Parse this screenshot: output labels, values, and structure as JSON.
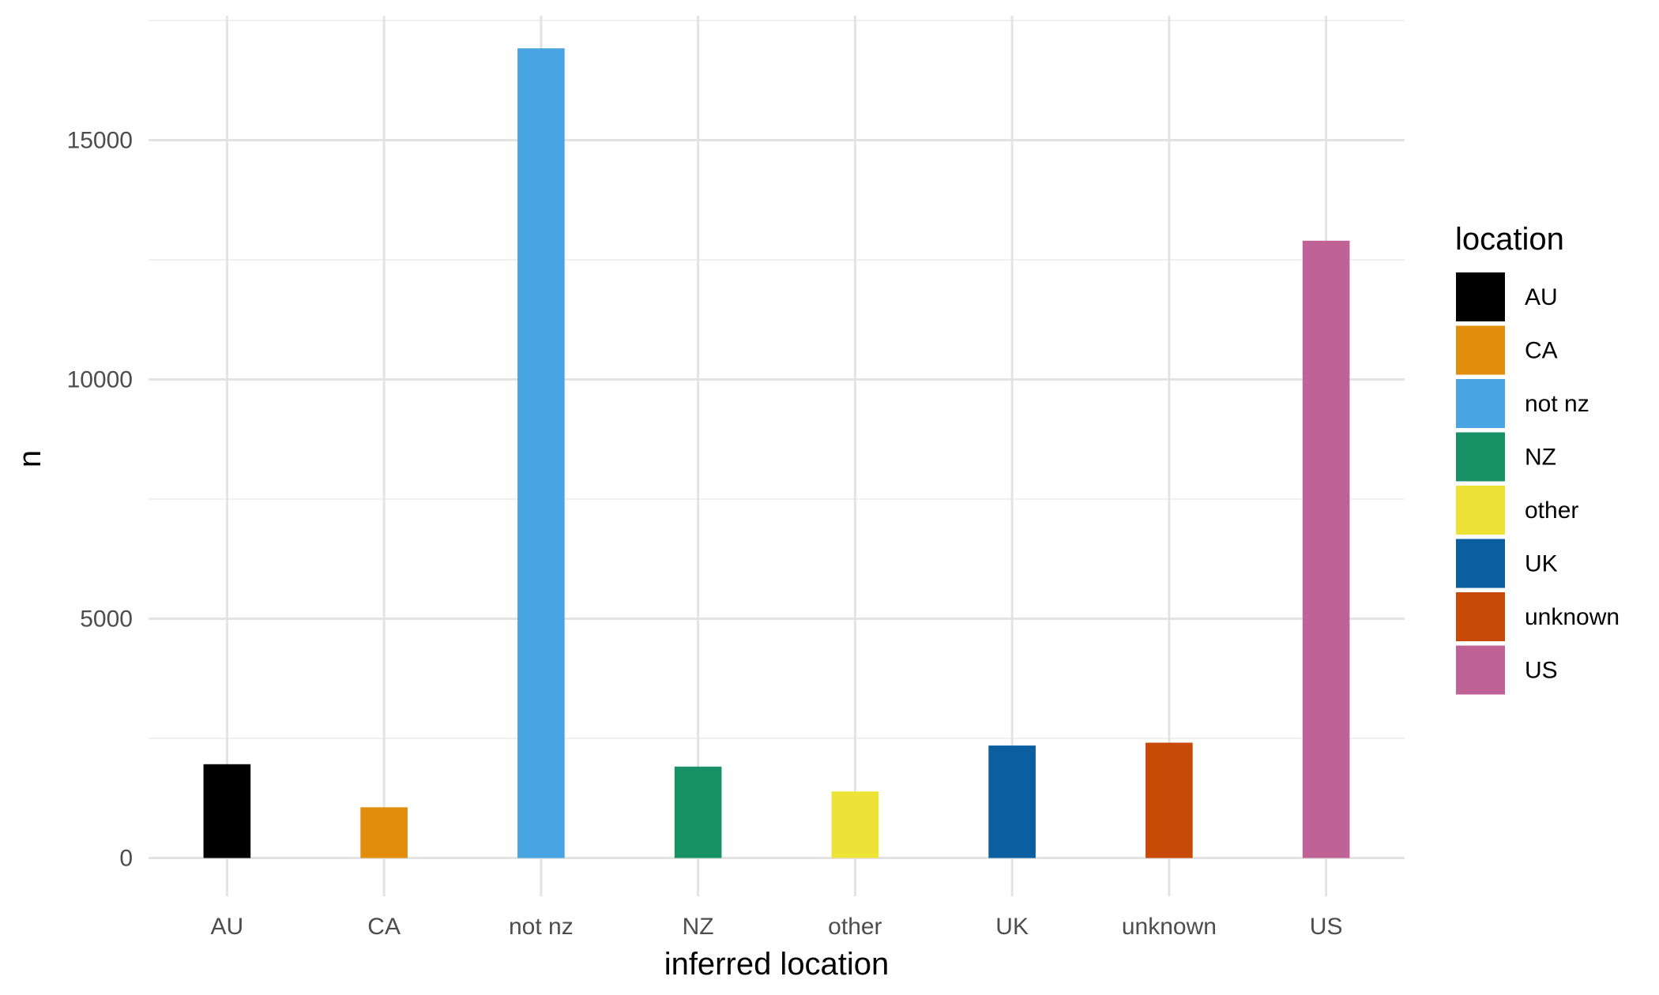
{
  "chart_data": {
    "type": "bar",
    "xlabel": "inferred location",
    "ylabel": "n",
    "categories": [
      "AU",
      "CA",
      "not nz",
      "NZ",
      "other",
      "UK",
      "unknown",
      "US"
    ],
    "values": [
      1960,
      1060,
      16920,
      1910,
      1390,
      2350,
      2410,
      12900
    ],
    "colors": [
      "#000000",
      "#E08E0B",
      "#48A4E2",
      "#179165",
      "#EDE336",
      "#0B5EA0",
      "#C84A06",
      "#BF6396"
    ],
    "ylim": [
      -800,
      17600
    ],
    "yticks": [
      0,
      5000,
      10000,
      15000
    ],
    "ytick_labels": [
      "0",
      "5000",
      "10000",
      "15000"
    ],
    "grid": true,
    "legend": {
      "title": "location",
      "position": "right",
      "entries": [
        "AU",
        "CA",
        "not nz",
        "NZ",
        "other",
        "UK",
        "unknown",
        "US"
      ]
    }
  }
}
